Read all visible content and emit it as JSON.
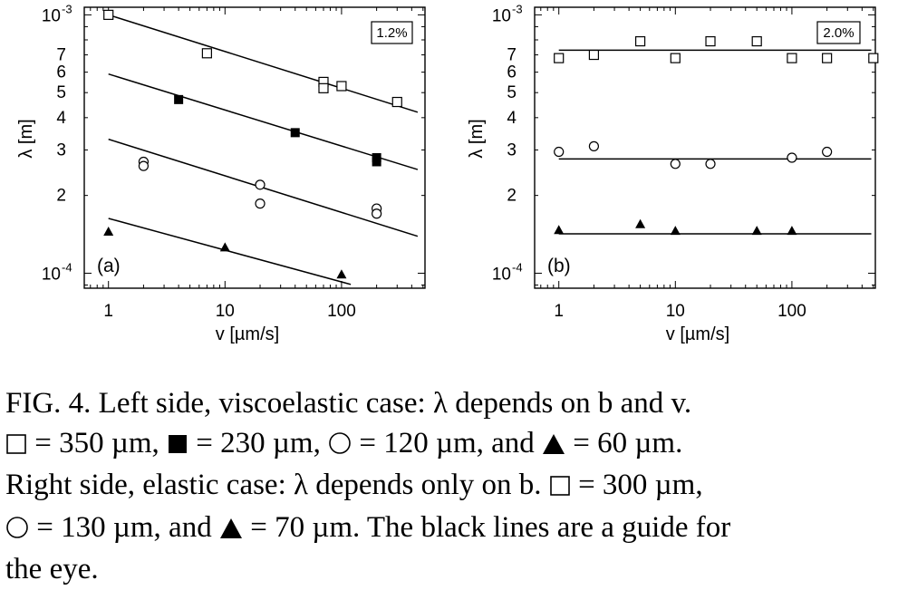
{
  "chart_data": [
    {
      "type": "scatter",
      "panel_label": "(a)",
      "annotation": "1.2%",
      "xlabel": "v [µm/s]",
      "ylabel": "λ [m]",
      "x_scale": "log",
      "y_scale": "log",
      "xlim": [
        0.62,
        520
      ],
      "ylim": [
        8.75e-05,
        0.00107
      ],
      "x_ticks": [
        {
          "value": 1,
          "label": "1"
        },
        {
          "value": 10,
          "label": "10"
        },
        {
          "value": 100,
          "label": "100"
        }
      ],
      "y_ticks": [
        {
          "value": 0.001,
          "label": "10",
          "sup": "-3"
        },
        {
          "value": 0.0007,
          "label": "7"
        },
        {
          "value": 0.0006,
          "label": "6"
        },
        {
          "value": 0.0005,
          "label": "5"
        },
        {
          "value": 0.0004,
          "label": "4"
        },
        {
          "value": 0.0003,
          "label": "3"
        },
        {
          "value": 0.0002,
          "label": "2"
        },
        {
          "value": 0.0001,
          "label": "10",
          "sup": "-4"
        }
      ],
      "series": [
        {
          "marker": "square-open",
          "points": [
            [
              1,
              0.001
            ],
            [
              7,
              0.00071
            ],
            [
              70,
              0.00055
            ],
            [
              70,
              0.00052
            ],
            [
              100,
              0.00053
            ],
            [
              300,
              0.00046
            ]
          ],
          "fit": [
            [
              1,
              0.001
            ],
            [
              450,
              0.00042
            ]
          ]
        },
        {
          "marker": "square-filled",
          "points": [
            [
              4,
              0.00047
            ],
            [
              40,
              0.00035
            ],
            [
              200,
              0.00028
            ],
            [
              200,
              0.00027
            ]
          ],
          "fit": [
            [
              1,
              0.00059
            ],
            [
              450,
              0.000252
            ]
          ]
        },
        {
          "marker": "circle-open",
          "points": [
            [
              2,
              0.00027
            ],
            [
              2,
              0.00026
            ],
            [
              20,
              0.00022
            ],
            [
              20,
              0.000186
            ],
            [
              200,
              0.000178
            ],
            [
              200,
              0.00017
            ]
          ],
          "fit": [
            [
              1,
              0.00033
            ],
            [
              450,
              0.000139
            ]
          ]
        },
        {
          "marker": "triangle-filled",
          "points": [
            [
              1,
              0.000145
            ],
            [
              10,
              0.000126
            ],
            [
              100,
              9.9e-05
            ]
          ],
          "fit": [
            [
              1,
              0.000163
            ],
            [
              120,
              9.05e-05
            ]
          ]
        }
      ]
    },
    {
      "type": "scatter",
      "panel_label": "(b)",
      "annotation": "2.0%",
      "xlabel": "v [µm/s]",
      "ylabel": "λ [m]",
      "x_scale": "log",
      "y_scale": "log",
      "xlim": [
        0.62,
        520
      ],
      "ylim": [
        8.75e-05,
        0.00107
      ],
      "x_ticks": [
        {
          "value": 1,
          "label": "1"
        },
        {
          "value": 10,
          "label": "10"
        },
        {
          "value": 100,
          "label": "100"
        }
      ],
      "y_ticks": [
        {
          "value": 0.001,
          "label": "10",
          "sup": "-3"
        },
        {
          "value": 0.0007,
          "label": "7"
        },
        {
          "value": 0.0006,
          "label": "6"
        },
        {
          "value": 0.0005,
          "label": "5"
        },
        {
          "value": 0.0004,
          "label": "4"
        },
        {
          "value": 0.0003,
          "label": "3"
        },
        {
          "value": 0.0002,
          "label": "2"
        },
        {
          "value": 0.0001,
          "label": "10",
          "sup": "-4"
        }
      ],
      "series": [
        {
          "marker": "square-open",
          "points": [
            [
              1,
              0.00068
            ],
            [
              2,
              0.0007
            ],
            [
              5,
              0.00079
            ],
            [
              10,
              0.00068
            ],
            [
              20,
              0.00079
            ],
            [
              50,
              0.00079
            ],
            [
              100,
              0.00068
            ],
            [
              200,
              0.00068
            ],
            [
              500,
              0.00068
            ]
          ],
          "fit": [
            [
              1,
              0.00073
            ],
            [
              480,
              0.00073
            ]
          ]
        },
        {
          "marker": "circle-open",
          "points": [
            [
              1,
              0.000295
            ],
            [
              2,
              0.00031
            ],
            [
              10,
              0.000265
            ],
            [
              20,
              0.000265
            ],
            [
              100,
              0.00028
            ],
            [
              200,
              0.000295
            ]
          ],
          "fit": [
            [
              1,
              0.000277
            ],
            [
              480,
              0.000277
            ]
          ]
        },
        {
          "marker": "triangle-filled",
          "points": [
            [
              1,
              0.000147
            ],
            [
              5,
              0.000155
            ],
            [
              10,
              0.000146
            ],
            [
              50,
              0.000146
            ],
            [
              100,
              0.000146
            ]
          ],
          "fit": [
            [
              1,
              0.000142
            ],
            [
              480,
              0.000142
            ]
          ]
        }
      ]
    }
  ],
  "caption": {
    "line1": "FIG. 4.  Left side, viscoelastic case: λ depends on b and v.",
    "line2_a": "= 350 µm,",
    "line2_b": "= 230 µm,",
    "line2_c": "= 120 µm, and",
    "line2_d": "= 60 µm.",
    "line3_a": "Right side, elastic case: λ depends only on b.",
    "line3_b": "= 300 µm,",
    "line4_a": "= 130 µm, and",
    "line4_b": "= 70 µm. The black lines are a guide for",
    "line5": "the eye."
  }
}
